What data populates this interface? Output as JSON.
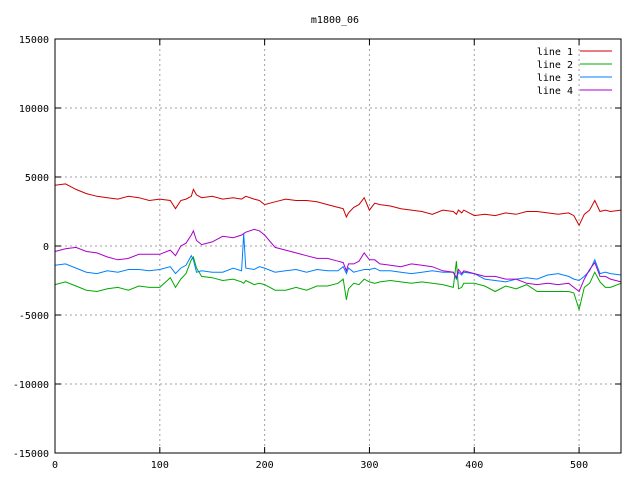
{
  "chart_data": {
    "type": "line",
    "title": "m1800_06",
    "xlabel": "",
    "ylabel": "",
    "xlim": [
      0,
      540
    ],
    "ylim": [
      -15000,
      15000
    ],
    "grid": true,
    "legend_position": "top-right",
    "x_ticks": [
      0,
      100,
      200,
      300,
      400,
      500
    ],
    "x_tick_labels": [
      "0",
      "100",
      "200",
      "300",
      "400",
      "500"
    ],
    "y_ticks": [
      -15000,
      -10000,
      -5000,
      0,
      5000,
      10000,
      15000
    ],
    "y_tick_labels": [
      "-15000",
      "-10000",
      "-5000",
      "0",
      "5000",
      "10000",
      "15000"
    ],
    "x": [
      0,
      10,
      20,
      30,
      40,
      50,
      60,
      70,
      80,
      90,
      100,
      110,
      115,
      120,
      125,
      130,
      132,
      135,
      140,
      150,
      160,
      170,
      178,
      180,
      182,
      190,
      195,
      200,
      210,
      220,
      230,
      240,
      250,
      260,
      270,
      275,
      278,
      280,
      285,
      290,
      295,
      300,
      305,
      310,
      320,
      330,
      340,
      350,
      360,
      370,
      380,
      383,
      385,
      388,
      390,
      400,
      410,
      420,
      430,
      440,
      450,
      460,
      470,
      480,
      490,
      495,
      500,
      505,
      510,
      515,
      520,
      525,
      530,
      540
    ],
    "series": [
      {
        "name": "line 1",
        "color": "#cc0000",
        "values": [
          4400,
          4500,
          4100,
          3800,
          3600,
          3500,
          3400,
          3600,
          3500,
          3300,
          3400,
          3300,
          2700,
          3300,
          3400,
          3600,
          4100,
          3700,
          3500,
          3600,
          3400,
          3500,
          3400,
          3500,
          3600,
          3400,
          3300,
          3000,
          3200,
          3400,
          3300,
          3300,
          3200,
          3000,
          2800,
          2700,
          2100,
          2400,
          2800,
          3000,
          3500,
          2600,
          3100,
          3000,
          2900,
          2700,
          2600,
          2500,
          2300,
          2600,
          2500,
          2300,
          2600,
          2400,
          2600,
          2200,
          2300,
          2200,
          2400,
          2300,
          2500,
          2500,
          2400,
          2300,
          2400,
          2200,
          1500,
          2300,
          2600,
          3300,
          2500,
          2600,
          2500,
          2600
        ]
      },
      {
        "name": "line 2",
        "color": "#00aa00",
        "values": [
          -2800,
          -2600,
          -2900,
          -3200,
          -3300,
          -3100,
          -3000,
          -3200,
          -2900,
          -3000,
          -3000,
          -2300,
          -3000,
          -2400,
          -2000,
          -1000,
          -800,
          -1600,
          -2200,
          -2300,
          -2500,
          -2400,
          -2600,
          -2700,
          -2500,
          -2800,
          -2700,
          -2800,
          -3200,
          -3200,
          -3000,
          -3200,
          -2900,
          -2900,
          -2700,
          -2400,
          -3900,
          -3100,
          -2700,
          -2800,
          -2400,
          -2600,
          -2700,
          -2600,
          -2500,
          -2600,
          -2700,
          -2600,
          -2700,
          -2800,
          -3000,
          -1100,
          -3100,
          -3000,
          -2700,
          -2700,
          -2900,
          -3300,
          -2900,
          -3100,
          -2800,
          -3300,
          -3300,
          -3300,
          -3300,
          -3400,
          -4600,
          -3000,
          -2700,
          -1900,
          -2600,
          -3000,
          -3000,
          -2700
        ]
      },
      {
        "name": "line 3",
        "color": "#0080ff",
        "values": [
          -1400,
          -1300,
          -1600,
          -1900,
          -2000,
          -1800,
          -1900,
          -1700,
          -1700,
          -1800,
          -1700,
          -1500,
          -2000,
          -1600,
          -1400,
          -700,
          -1000,
          -1900,
          -1800,
          -1900,
          -1900,
          -1600,
          -1800,
          900,
          -1600,
          -1700,
          -1500,
          -1600,
          -1900,
          -1800,
          -1700,
          -1900,
          -1700,
          -1800,
          -1800,
          -1500,
          -2000,
          -1600,
          -1900,
          -1800,
          -1700,
          -1700,
          -1600,
          -1800,
          -1800,
          -1900,
          -2000,
          -1900,
          -1800,
          -1900,
          -1900,
          -2400,
          -1900,
          -2100,
          -1900,
          -2000,
          -2400,
          -2500,
          -2600,
          -2400,
          -2300,
          -2400,
          -2100,
          -2000,
          -2200,
          -2400,
          -2500,
          -2200,
          -1800,
          -1000,
          -2000,
          -1900,
          -2000,
          -2100
        ]
      },
      {
        "name": "line 4",
        "color": "#aa00cc",
        "values": [
          -400,
          -200,
          -100,
          -400,
          -500,
          -800,
          -1000,
          -900,
          -600,
          -600,
          -600,
          -300,
          -700,
          0,
          200,
          800,
          1100,
          400,
          100,
          300,
          700,
          600,
          800,
          900,
          1000,
          1200,
          1100,
          800,
          -100,
          -300,
          -500,
          -700,
          -900,
          -900,
          -1100,
          -1200,
          -1800,
          -1300,
          -1300,
          -1100,
          -500,
          -1000,
          -1000,
          -1300,
          -1400,
          -1500,
          -1300,
          -1400,
          -1500,
          -1800,
          -1900,
          -2300,
          -1700,
          -2000,
          -1800,
          -2000,
          -2200,
          -2200,
          -2400,
          -2400,
          -2700,
          -2800,
          -2700,
          -2800,
          -2700,
          -3000,
          -3300,
          -2400,
          -1700,
          -1200,
          -2200,
          -2200,
          -2400,
          -2600
        ]
      }
    ]
  }
}
